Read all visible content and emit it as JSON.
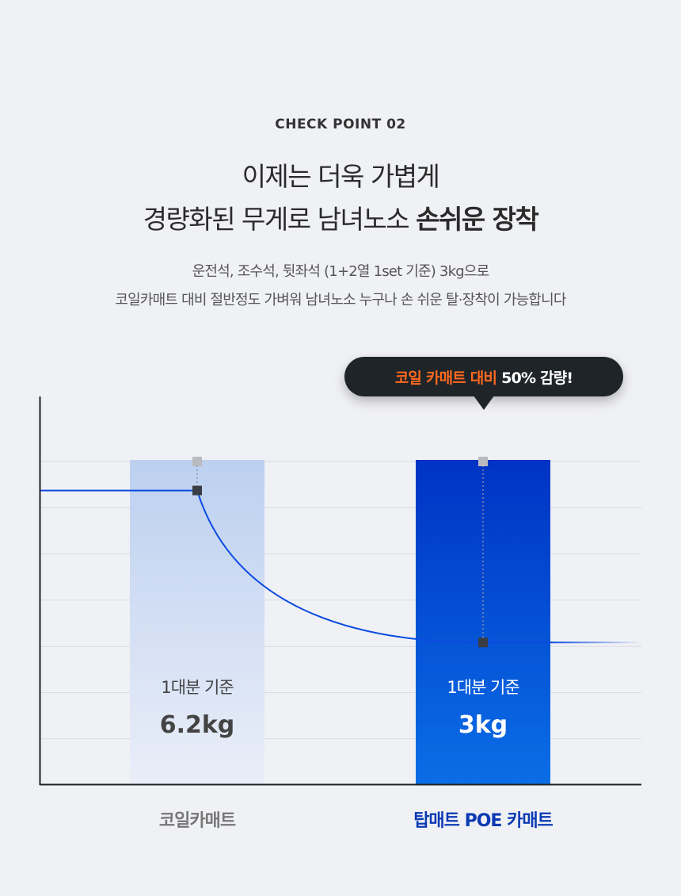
{
  "header": {
    "eyebrow": "CHECK POINT 02",
    "title_line1": "이제는 더욱 가볍게",
    "title_line2_regular": "경량화된 무게로 남녀노소",
    "title_line2_bold": "손쉬운 장착",
    "desc_line1": "운전석, 조수석, 뒷좌석 (1+2열 1set 기준) 3kg으로",
    "desc_line2": "코일카매트 대비 절반정도 가벼워 남녀노소 누구나 손 쉬운 탈·장착이 가능합니다"
  },
  "callout": {
    "highlight": "코일 카매트 대비",
    "text": "50% 감량!"
  },
  "colors": {
    "background": "#f0f1f5",
    "coil_bar_top": "#bcd0f0",
    "coil_bar_bottom": "#eaeef8",
    "poe_bar_top": "#0033c4",
    "poe_bar_bottom": "#0a6ee6",
    "trend_line": "#0b4be0",
    "poe_label": "#0b3ab3",
    "coil_label": "#777777",
    "accent_orange": "#ff6a1f"
  },
  "chart_data": {
    "type": "bar",
    "categories": [
      "코일카매트",
      "탑매트 POE 카매트"
    ],
    "values": [
      6.2,
      3
    ],
    "unit": "kg",
    "value_labels": [
      "6.2kg",
      "3kg"
    ],
    "bar_sublabel": "1대분 기준",
    "grid": true,
    "ylim": [
      0,
      7
    ]
  }
}
